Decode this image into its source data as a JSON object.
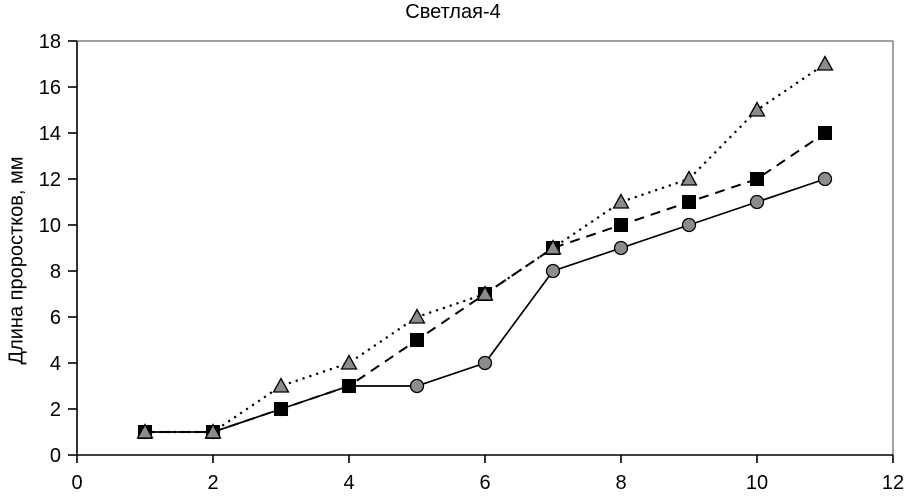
{
  "figure": {
    "background": "#ffffff"
  },
  "chart_data": {
    "type": "line",
    "title": "Светлая-4",
    "xlabel": "",
    "ylabel": "Длина проростков, мм",
    "x": [
      1,
      2,
      3,
      4,
      5,
      6,
      7,
      8,
      9,
      10,
      11
    ],
    "series": [
      {
        "name": "circles-solid",
        "marker": "circle",
        "line_style": "solid",
        "marker_fill": "#8c8c8c",
        "values": [
          1,
          1,
          2,
          3,
          3,
          4,
          8,
          9,
          10,
          11,
          12
        ]
      },
      {
        "name": "squares-dashed",
        "marker": "square",
        "line_style": "dashed",
        "marker_fill": "#000000",
        "values": [
          1,
          1,
          2,
          3,
          5,
          7,
          9,
          10,
          11,
          12,
          14
        ]
      },
      {
        "name": "triangles-dotted",
        "marker": "triangle",
        "line_style": "dotted",
        "marker_fill": "#8c8c8c",
        "values": [
          1,
          1,
          3,
          4,
          6,
          7,
          9,
          11,
          12,
          15,
          17
        ]
      }
    ],
    "xlim": [
      0,
      12
    ],
    "ylim": [
      0,
      18
    ],
    "x_ticks": [
      0,
      2,
      4,
      6,
      8,
      10,
      12
    ],
    "y_ticks": [
      0,
      2,
      4,
      6,
      8,
      10,
      12,
      14,
      16,
      18
    ],
    "grid": false,
    "legend": false,
    "line_color": "#000000",
    "axis_color": "#000000",
    "border_color": "#808080"
  }
}
